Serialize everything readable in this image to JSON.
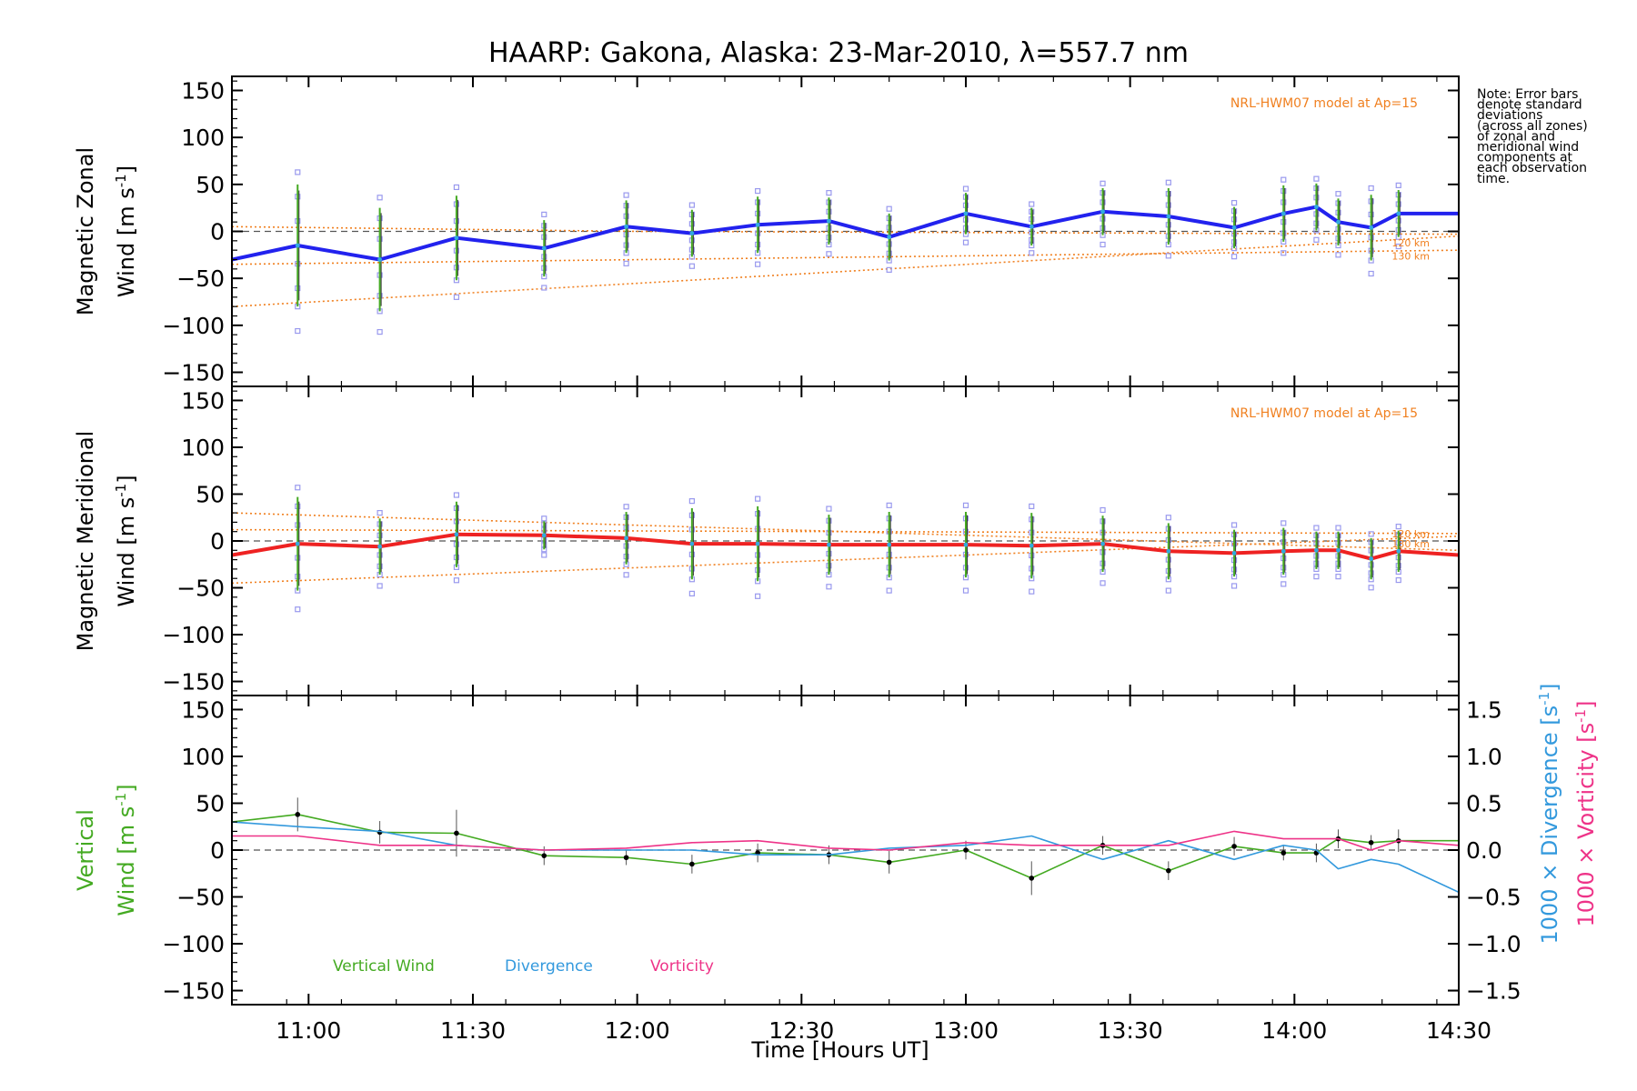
{
  "chart_data": {
    "type": "line",
    "title": "HAARP: Gakona,  Alaska: 23-Mar-2010, λ=557.7 nm",
    "xlabel": "Time [Hours UT]",
    "x_tick_labels": [
      "11:00",
      "11:30",
      "12:00",
      "12:30",
      "13:00",
      "13:30",
      "14:00",
      "14:30"
    ],
    "x_ticks": [
      "11:00",
      "11:30",
      "12:00",
      "12:30",
      "13:00",
      "13:30",
      "14:00",
      "14:30"
    ],
    "xlim": [
      "10:46",
      "14:30"
    ],
    "note": "Note: Error bars denote standard deviations (across all zones) of zonal and meridional wind components at each observation time.",
    "note_lines": [
      "Note: Error bars",
      "denote standard",
      "deviations",
      "(across all zones)",
      "of zonal and",
      "meridional wind",
      "components at",
      "each observation",
      "time."
    ],
    "colors": {
      "zonal": "#2222ee",
      "meridional": "#ee2222",
      "vertical": "#44aa22",
      "divergence": "#3399dd",
      "vorticity": "#ee3388",
      "model": "#f08020",
      "samples": "#9999ee"
    },
    "panels": [
      {
        "id": "zonal",
        "ylabel_line1": "Magnetic Zonal",
        "ylabel_line2": "Wind [m s",
        "ylabel_sup": "-1",
        "ylabel_close": "]",
        "ylim": [
          -165,
          165
        ],
        "y_ticks": [
          150,
          100,
          50,
          0,
          -50,
          -100,
          -150
        ],
        "y_tick_labels": [
          "150",
          "100",
          "50",
          "0",
          "−50",
          "−100",
          "−150"
        ],
        "model_label": "NRL-HWM07 model at Ap=15",
        "model_line_labels": [
          "120 km",
          "130 km"
        ],
        "series": [
          {
            "name": "Magnetic Zonal Wind",
            "x": [
              "10:46",
              "10:58",
              "11:13",
              "11:27",
              "11:43",
              "11:58",
              "12:10",
              "12:22",
              "12:35",
              "12:46",
              "13:00",
              "13:12",
              "13:25",
              "13:37",
              "13:49",
              "13:58",
              "14:04",
              "14:08",
              "14:14",
              "14:19",
              "14:30"
            ],
            "y": [
              -30,
              -15,
              -30,
              -7,
              -18,
              5,
              -2,
              7,
              11,
              -6,
              19,
              5,
              21,
              16,
              4,
              19,
              26,
              10,
              4,
              19,
              19
            ],
            "error": [
              null,
              65,
              55,
              45,
              30,
              28,
              25,
              30,
              25,
              25,
              22,
              20,
              25,
              30,
              22,
              30,
              25,
              25,
              35,
              25,
              null
            ]
          }
        ],
        "model_curves": [
          {
            "x": [
              "10:46",
              "14:30"
            ],
            "y": [
              -80,
              -5
            ]
          },
          {
            "x": [
              "10:46",
              "14:30"
            ],
            "y": [
              -35,
              -20
            ]
          },
          {
            "x": [
              "10:46",
              "12:00",
              "14:30"
            ],
            "y": [
              5,
              0,
              -3
            ]
          }
        ]
      },
      {
        "id": "meridional",
        "ylabel_line1": "Magnetic Meridional",
        "ylabel_line2": "Wind [m s",
        "ylabel_sup": "-1",
        "ylabel_close": "]",
        "ylim": [
          -165,
          165
        ],
        "y_ticks": [
          150,
          100,
          50,
          0,
          -50,
          -100,
          -150
        ],
        "y_tick_labels": [
          "150",
          "100",
          "50",
          "0",
          "−50",
          "−100",
          "−150"
        ],
        "model_label": "NRL-HWM07 model at Ap=15",
        "model_line_labels": [
          "120 km",
          "130 km"
        ],
        "series": [
          {
            "name": "Magnetic Meridional Wind",
            "x": [
              "10:46",
              "10:58",
              "11:13",
              "11:27",
              "11:43",
              "11:58",
              "12:10",
              "12:22",
              "12:35",
              "12:46",
              "13:00",
              "13:12",
              "13:25",
              "13:37",
              "13:49",
              "13:58",
              "14:04",
              "14:08",
              "14:14",
              "14:19",
              "14:30"
            ],
            "y": [
              -15,
              -3,
              -6,
              7,
              6,
              3,
              -3,
              -3,
              -4,
              -4,
              -4,
              -5,
              -3,
              -11,
              -13,
              -11,
              -10,
              -10,
              -19,
              -11,
              -15
            ],
            "error": [
              null,
              50,
              30,
              35,
              15,
              28,
              38,
              40,
              32,
              35,
              35,
              35,
              30,
              30,
              25,
              25,
              20,
              20,
              22,
              22,
              null
            ]
          }
        ],
        "model_curves": [
          {
            "x": [
              "10:46",
              "14:30"
            ],
            "y": [
              -45,
              5
            ]
          },
          {
            "x": [
              "10:46",
              "14:30"
            ],
            "y": [
              12,
              8
            ]
          },
          {
            "x": [
              "10:46",
              "14:30"
            ],
            "y": [
              30,
              -10
            ]
          }
        ]
      },
      {
        "id": "vertical",
        "ylabel_line1": "Vertical",
        "ylabel_line2": "Wind [m s",
        "ylabel_sup": "-1",
        "ylabel_close": "]",
        "ylim": [
          -165,
          165
        ],
        "y_ticks": [
          150,
          100,
          50,
          0,
          -50,
          -100,
          -150
        ],
        "y_tick_labels": [
          "150",
          "100",
          "50",
          "0",
          "−50",
          "−100",
          "−150"
        ],
        "right_axis": {
          "ylim": [
            -1.65,
            1.65
          ],
          "ticks": [
            1.5,
            1.0,
            0.5,
            0.0,
            -0.5,
            -1.0,
            -1.5
          ],
          "tick_labels": [
            "1.5",
            "1.0",
            "0.5",
            "0.0",
            "−0.5",
            "−1.0",
            "−1.5"
          ],
          "label_div": "1000 × Divergence [s",
          "label_vort": "1000 × Vorticity [s",
          "label_sup": "-1",
          "label_close": "]"
        },
        "legend": [
          "Vertical Wind",
          "Divergence",
          "Vorticity"
        ],
        "series": [
          {
            "name": "Vertical Wind",
            "x": [
              "10:46",
              "10:58",
              "11:13",
              "11:27",
              "11:43",
              "11:58",
              "12:10",
              "12:22",
              "12:35",
              "12:46",
              "13:00",
              "13:12",
              "13:25",
              "13:37",
              "13:49",
              "13:58",
              "14:04",
              "14:08",
              "14:14",
              "14:19",
              "14:30"
            ],
            "y": [
              30,
              38,
              19,
              18,
              -6,
              -8,
              -15,
              -3,
              -5,
              -13,
              0,
              -30,
              5,
              -22,
              4,
              -3,
              -3,
              12,
              8,
              10,
              10
            ],
            "error": [
              null,
              18,
              12,
              25,
              10,
              8,
              10,
              10,
              10,
              12,
              10,
              18,
              10,
              10,
              10,
              8,
              10,
              10,
              8,
              12,
              null
            ]
          },
          {
            "name": "Divergence",
            "x": [
              "10:46",
              "10:58",
              "11:13",
              "11:27",
              "11:43",
              "11:58",
              "12:10",
              "12:22",
              "12:35",
              "12:46",
              "13:00",
              "13:12",
              "13:25",
              "13:37",
              "13:49",
              "13:58",
              "14:04",
              "14:08",
              "14:14",
              "14:19",
              "14:30"
            ],
            "y": [
              0.3,
              0.25,
              0.2,
              0.05,
              0.0,
              0.0,
              0.0,
              -0.05,
              -0.05,
              0.02,
              0.05,
              0.15,
              -0.1,
              0.1,
              -0.1,
              0.05,
              0.0,
              -0.2,
              -0.1,
              -0.15,
              -0.45
            ]
          },
          {
            "name": "Vorticity",
            "x": [
              "10:46",
              "10:58",
              "11:13",
              "11:27",
              "11:43",
              "11:58",
              "12:10",
              "12:22",
              "12:35",
              "12:46",
              "13:00",
              "13:12",
              "13:25",
              "13:37",
              "13:49",
              "13:58",
              "14:04",
              "14:08",
              "14:14",
              "14:19",
              "14:30"
            ],
            "y": [
              0.15,
              0.15,
              0.05,
              0.05,
              0.0,
              0.02,
              0.08,
              0.1,
              0.02,
              0.0,
              0.08,
              0.05,
              0.05,
              0.05,
              0.2,
              0.12,
              0.12,
              0.12,
              0.0,
              0.1,
              0.05
            ]
          }
        ]
      }
    ]
  }
}
